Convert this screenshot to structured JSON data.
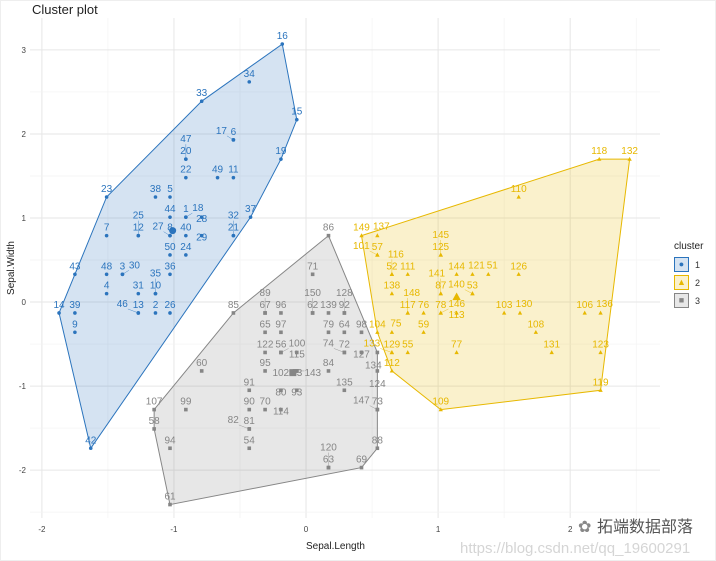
{
  "chart_data": {
    "type": "scatter",
    "title": "Cluster plot",
    "xlabel": "Sepal.Length",
    "ylabel": "Sepal.Width",
    "xlim": [
      -2.09,
      2.68
    ],
    "ylim": [
      -2.57,
      3.38
    ],
    "xticks": [
      -2,
      -1,
      0,
      1,
      2
    ],
    "xtick_labels": [
      "-2",
      "-1",
      "0",
      "1",
      "2"
    ],
    "yticks": [
      -2,
      -1,
      0,
      1,
      2,
      3
    ],
    "ytick_labels": [
      "-2",
      "-1",
      "0",
      "1",
      "2",
      "3"
    ],
    "grid": true,
    "legend": {
      "title": "cluster",
      "placement": "right",
      "entries": [
        "1",
        "2",
        "3"
      ]
    },
    "series": [
      {
        "name": "1",
        "color": "#2B74BD",
        "shape": "circle",
        "centroid": [
          -1.01,
          0.85
        ],
        "points": [
          [
            "16",
            -0.18,
            3.07
          ],
          [
            "34",
            -0.43,
            2.62
          ],
          [
            "33",
            -0.79,
            2.39
          ],
          [
            "15",
            -0.07,
            2.17
          ],
          [
            "6",
            -0.55,
            1.93
          ],
          [
            "17",
            -0.55,
            1.93
          ],
          [
            "20",
            -0.91,
            1.7
          ],
          [
            "47",
            -0.91,
            1.7
          ],
          [
            "19",
            -0.19,
            1.7
          ],
          [
            "22",
            -0.91,
            1.48
          ],
          [
            "49",
            -0.67,
            1.48
          ],
          [
            "11",
            -0.55,
            1.48
          ],
          [
            "23",
            -1.51,
            1.25
          ],
          [
            "38",
            -1.14,
            1.25
          ],
          [
            "5",
            -1.03,
            1.25
          ],
          [
            "44",
            -1.03,
            1.01
          ],
          [
            "1",
            -0.91,
            1.01
          ],
          [
            "18",
            -0.91,
            1.01
          ],
          [
            "28",
            -0.79,
            1.01
          ],
          [
            "37",
            -0.42,
            1.01
          ],
          [
            "7",
            -1.51,
            0.79
          ],
          [
            "12",
            -1.27,
            0.79
          ],
          [
            "25",
            -1.27,
            0.79
          ],
          [
            "8",
            -1.03,
            0.79
          ],
          [
            "27",
            -1.03,
            0.79
          ],
          [
            "40",
            -0.91,
            0.79
          ],
          [
            "29",
            -0.79,
            0.79
          ],
          [
            "21",
            -0.55,
            0.79
          ],
          [
            "32",
            -0.55,
            0.79
          ],
          [
            "50",
            -1.03,
            0.56
          ],
          [
            "24",
            -0.91,
            0.56
          ],
          [
            "43",
            -1.75,
            0.33
          ],
          [
            "48",
            -1.51,
            0.33
          ],
          [
            "3",
            -1.39,
            0.33
          ],
          [
            "30",
            -1.39,
            0.33
          ],
          [
            "36",
            -1.03,
            0.33
          ],
          [
            "4",
            -1.51,
            0.1
          ],
          [
            "31",
            -1.27,
            0.1
          ],
          [
            "10",
            -1.14,
            0.1
          ],
          [
            "35",
            -1.14,
            0.1
          ],
          [
            "14",
            -1.87,
            -0.13
          ],
          [
            "39",
            -1.75,
            -0.13
          ],
          [
            "13",
            -1.27,
            -0.13
          ],
          [
            "46",
            -1.27,
            -0.13
          ],
          [
            "2",
            -1.14,
            -0.13
          ],
          [
            "26",
            -1.03,
            -0.13
          ],
          [
            "9",
            -1.75,
            -0.36
          ],
          [
            "42",
            -1.63,
            -1.74
          ]
        ]
      },
      {
        "name": "2",
        "color": "#E7B800",
        "shape": "triangle",
        "centroid": [
          1.14,
          0.06
        ],
        "points": [
          [
            "118",
            2.22,
            1.7
          ],
          [
            "132",
            2.45,
            1.7
          ],
          [
            "110",
            1.61,
            1.25
          ],
          [
            "149",
            0.42,
            0.79
          ],
          [
            "137",
            0.54,
            0.79
          ],
          [
            "57",
            0.54,
            0.56
          ],
          [
            "101",
            0.54,
            0.56
          ],
          [
            "125",
            1.02,
            0.56
          ],
          [
            "145",
            1.02,
            0.56
          ],
          [
            "52",
            0.65,
            0.33
          ],
          [
            "116",
            0.65,
            0.33
          ],
          [
            "111",
            0.77,
            0.33
          ],
          [
            "144",
            1.14,
            0.33
          ],
          [
            "121",
            1.26,
            0.33
          ],
          [
            "51",
            1.38,
            0.33
          ],
          [
            "126",
            1.61,
            0.33
          ],
          [
            "138",
            0.65,
            0.1
          ],
          [
            "87",
            1.02,
            0.1
          ],
          [
            "141",
            1.02,
            0.1
          ],
          [
            "53",
            1.26,
            0.1
          ],
          [
            "140",
            1.26,
            0.1
          ],
          [
            "117",
            0.77,
            -0.13
          ],
          [
            "148",
            0.77,
            -0.13
          ],
          [
            "76",
            0.89,
            -0.13
          ],
          [
            "78",
            1.02,
            -0.13
          ],
          [
            "146",
            1.02,
            -0.13
          ],
          [
            "113",
            1.14,
            -0.13
          ],
          [
            "103",
            1.5,
            -0.13
          ],
          [
            "130",
            1.62,
            -0.13
          ],
          [
            "106",
            2.11,
            -0.13
          ],
          [
            "136",
            2.23,
            -0.13
          ],
          [
            "104",
            0.54,
            -0.36
          ],
          [
            "75",
            0.65,
            -0.36
          ],
          [
            "59",
            0.89,
            -0.36
          ],
          [
            "108",
            1.74,
            -0.36
          ],
          [
            "129",
            0.65,
            -0.6
          ],
          [
            "133",
            0.65,
            -0.6
          ],
          [
            "55",
            0.77,
            -0.6
          ],
          [
            "77",
            1.14,
            -0.6
          ],
          [
            "131",
            1.86,
            -0.6
          ],
          [
            "123",
            2.23,
            -0.6
          ],
          [
            "112",
            0.65,
            -0.82
          ],
          [
            "119",
            2.23,
            -1.05
          ],
          [
            "109",
            1.02,
            -1.28
          ]
        ]
      },
      {
        "name": "3",
        "color": "#868686",
        "shape": "square",
        "centroid": [
          -0.1,
          -0.84
        ],
        "points": [
          [
            "86",
            0.17,
            0.79
          ],
          [
            "71",
            0.05,
            0.33
          ],
          [
            "85",
            -0.55,
            -0.13
          ],
          [
            "67",
            -0.31,
            -0.13
          ],
          [
            "89",
            -0.31,
            -0.13
          ],
          [
            "96",
            -0.19,
            -0.13
          ],
          [
            "62",
            0.05,
            -0.13
          ],
          [
            "150",
            0.05,
            -0.13
          ],
          [
            "139",
            0.17,
            -0.13
          ],
          [
            "92",
            0.29,
            -0.13
          ],
          [
            "128",
            0.29,
            -0.13
          ],
          [
            "65",
            -0.31,
            -0.36
          ],
          [
            "97",
            -0.19,
            -0.36
          ],
          [
            "79",
            0.17,
            -0.36
          ],
          [
            "64",
            0.29,
            -0.36
          ],
          [
            "98",
            0.42,
            -0.36
          ],
          [
            "122",
            -0.31,
            -0.6
          ],
          [
            "56",
            -0.19,
            -0.6
          ],
          [
            "100",
            -0.19,
            -0.6
          ],
          [
            "115",
            -0.07,
            -0.6
          ],
          [
            "72",
            0.29,
            -0.6
          ],
          [
            "74",
            0.29,
            -0.6
          ],
          [
            "127",
            0.42,
            -0.6
          ],
          [
            "134",
            0.54,
            -0.6
          ],
          [
            "95",
            -0.31,
            -0.82
          ],
          [
            "83",
            -0.07,
            -0.82
          ],
          [
            "102",
            -0.07,
            -0.82
          ],
          [
            "143",
            -0.07,
            -0.82
          ],
          [
            "84",
            0.17,
            -0.82
          ],
          [
            "124",
            0.54,
            -0.82
          ],
          [
            "60",
            -0.79,
            -0.82
          ],
          [
            "91",
            -0.43,
            -1.05
          ],
          [
            "80",
            -0.19,
            -1.05
          ],
          [
            "93",
            -0.07,
            -1.05
          ],
          [
            "135",
            0.29,
            -1.05
          ],
          [
            "107",
            -1.15,
            -1.28
          ],
          [
            "99",
            -0.91,
            -1.28
          ],
          [
            "90",
            -0.43,
            -1.28
          ],
          [
            "70",
            -0.31,
            -1.28
          ],
          [
            "114",
            -0.19,
            -1.28
          ],
          [
            "73",
            0.54,
            -1.28
          ],
          [
            "147",
            0.54,
            -1.28
          ],
          [
            "58",
            -1.15,
            -1.51
          ],
          [
            "81",
            -0.43,
            -1.51
          ],
          [
            "82",
            -0.43,
            -1.51
          ],
          [
            "94",
            -1.03,
            -1.74
          ],
          [
            "54",
            -0.43,
            -1.74
          ],
          [
            "88",
            0.54,
            -1.74
          ],
          [
            "63",
            0.17,
            -1.97
          ],
          [
            "120",
            0.17,
            -1.97
          ],
          [
            "69",
            0.42,
            -1.97
          ],
          [
            "61",
            -1.03,
            -2.41
          ]
        ]
      }
    ]
  },
  "watermark": {
    "icon": "wechat-icon",
    "text": "拓端数据部落",
    "url": "https://blog.csdn.net/qq_19600291"
  }
}
